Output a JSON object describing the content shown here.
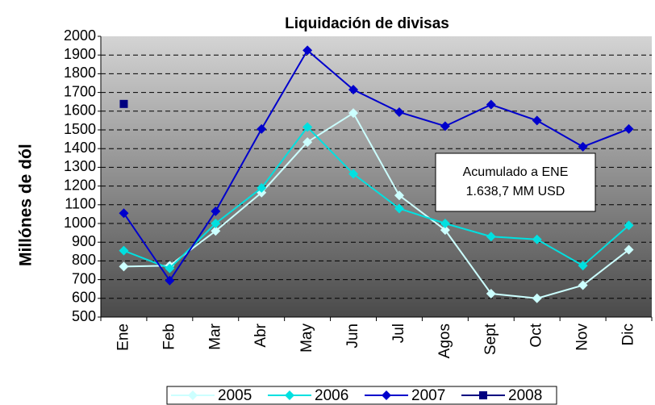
{
  "chart_data": {
    "type": "line",
    "title": "Liquidación de divisas",
    "y_label": "Millónes de dól",
    "categories": [
      "Ene",
      "Feb",
      "Mar",
      "Abr",
      "May",
      "Jun",
      "Jul",
      "Agos",
      "Sept",
      "Oct",
      "Nov",
      "Dic"
    ],
    "series": [
      {
        "name": "2005",
        "color": "#ccffff",
        "marker": "diamond",
        "values": [
          770,
          775,
          960,
          1165,
          1435,
          1590,
          1150,
          965,
          625,
          600,
          670,
          860
        ]
      },
      {
        "name": "2006",
        "color": "#00e0e0",
        "marker": "diamond",
        "values": [
          855,
          760,
          1000,
          1190,
          1515,
          1265,
          1080,
          1000,
          930,
          915,
          775,
          990
        ]
      },
      {
        "name": "2007",
        "color": "#0000cc",
        "marker": "diamond",
        "values": [
          1055,
          695,
          1065,
          1505,
          1925,
          1715,
          1595,
          1520,
          1635,
          1550,
          1410,
          1505
        ]
      },
      {
        "name": "2008",
        "color": "#000080",
        "marker": "square",
        "values": [
          1638.7,
          null,
          null,
          null,
          null,
          null,
          null,
          null,
          null,
          null,
          null,
          null
        ]
      }
    ],
    "annotation": [
      "Acumulado a ENE",
      "1.638,7  MM USD"
    ],
    "ylim": [
      500,
      2000
    ],
    "yticks": [
      500,
      600,
      700,
      800,
      900,
      1000,
      1100,
      1200,
      1300,
      1400,
      1500,
      1600,
      1700,
      1800,
      1900,
      2000
    ],
    "grid": true,
    "legend": "bottom"
  }
}
